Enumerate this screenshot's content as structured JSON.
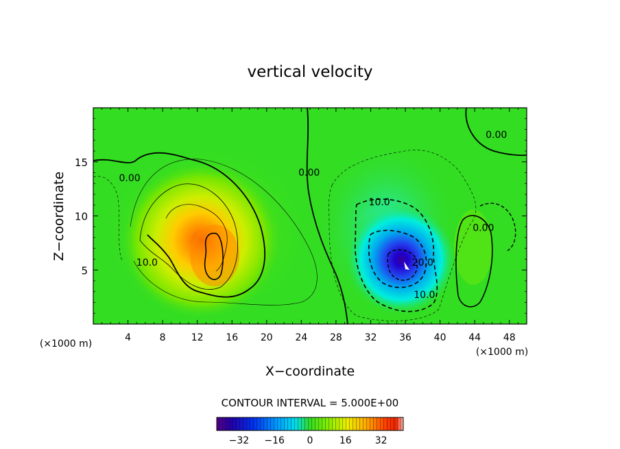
{
  "chart_data": {
    "type": "heatmap",
    "title": "vertical velocity",
    "xlabel": "X−coordinate",
    "ylabel": "Z−coordinate",
    "x_unit_left": "(×1000 m)",
    "x_unit_right": "(×1000 m)",
    "xlim": [
      0,
      50
    ],
    "ylim": [
      0,
      20
    ],
    "x_ticks": [
      4,
      8,
      12,
      16,
      20,
      24,
      28,
      32,
      36,
      40,
      44,
      48
    ],
    "y_ticks": [
      5,
      10,
      15
    ],
    "contour_interval_text": "CONTOUR INTERVAL = 5.000E+00",
    "contour_labels": [
      {
        "text": "0.00",
        "x": 4.2,
        "y": 13.2
      },
      {
        "text": "10.0",
        "x": 6.2,
        "y": 5.4
      },
      {
        "text": "0.00",
        "x": 24.9,
        "y": 13.7
      },
      {
        "text": "10.0",
        "x": 33.0,
        "y": 11.0
      },
      {
        "text": "20.0",
        "x": 38.0,
        "y": 5.4
      },
      {
        "text": "10.0",
        "x": 38.2,
        "y": 2.4
      },
      {
        "text": "0.00",
        "x": 46.5,
        "y": 17.2
      },
      {
        "text": "0.00",
        "x": 45.0,
        "y": 8.6
      }
    ],
    "colorbar": {
      "range": [
        -42,
        42
      ],
      "ticks": [
        -32,
        -16,
        0,
        16,
        32
      ],
      "tick_labels": [
        "−32",
        "−16",
        "0",
        "16",
        "32"
      ]
    },
    "features": [
      {
        "sign": "positive",
        "x": 13.0,
        "z": 7.5,
        "peak": 28
      },
      {
        "sign": "negative",
        "x": 36.0,
        "z": 5.5,
        "peak": -42
      }
    ],
    "colors": {
      "background_field": "#33dd22",
      "peak_positive": "#ee5500",
      "peak_negative": "#330099"
    }
  }
}
